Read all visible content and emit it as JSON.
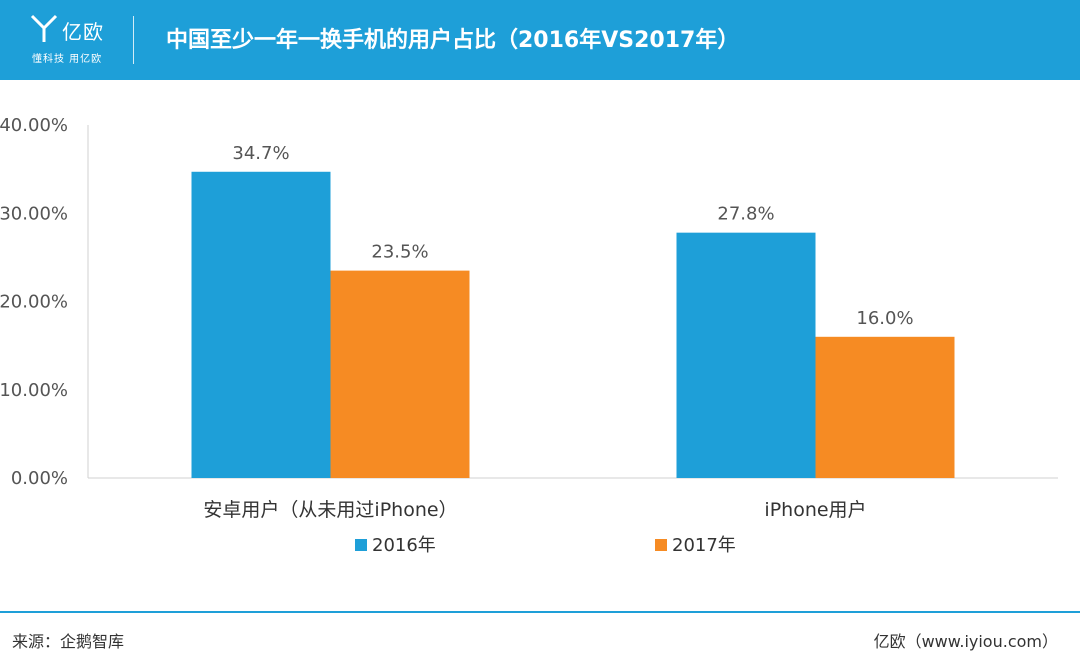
{
  "header": {
    "logo_text": "亿欧",
    "logo_slogan": "懂科技 用亿欧",
    "title": "中国至少一年一换手机的用户占比（2016年VS2017年）"
  },
  "footer": {
    "source": "来源：企鹅智库",
    "credit": "亿欧（www.iyiou.com）"
  },
  "colors": {
    "header_bg": "#1e9fd8",
    "series_2016": "#1e9fd8",
    "series_2017": "#f68b23"
  },
  "chart_data": {
    "type": "bar",
    "categories": [
      "安卓用户（从未用过iPhone）",
      "iPhone用户"
    ],
    "series": [
      {
        "name": "2016年",
        "color": "#1e9fd8",
        "values": [
          34.7,
          27.8
        ],
        "labels": [
          "34.7%",
          "27.8%"
        ]
      },
      {
        "name": "2017年",
        "color": "#f68b23",
        "values": [
          23.5,
          16.0
        ],
        "labels": [
          "23.5%",
          "16.0%"
        ]
      }
    ],
    "ylim": [
      0,
      40
    ],
    "yticks": [
      0,
      10,
      20,
      30,
      40
    ],
    "ytick_labels": [
      "0.00%",
      "10.00%",
      "20.00%",
      "30.00%",
      "40.00%"
    ],
    "grid": false,
    "legend": "bottom-center"
  }
}
